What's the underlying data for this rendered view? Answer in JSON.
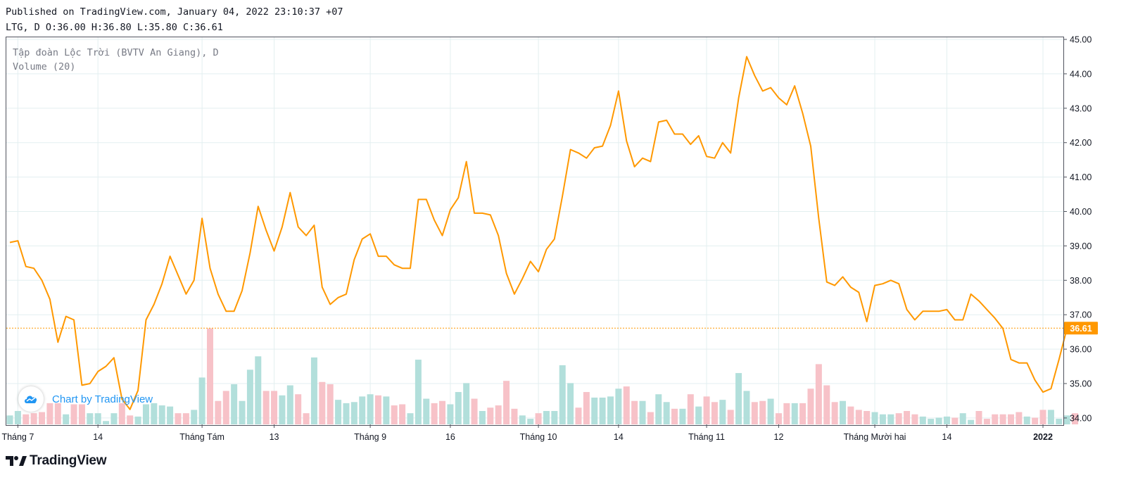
{
  "header": {
    "published": "Published on TradingView.com, January 04, 2022 23:10:37 +07",
    "ohlc": "LTG, D O:36.00 H:36.80 L:35.80 C:36.61"
  },
  "legend": {
    "symbol": "Tập đoàn Lộc Trời (BVTV An Giang), D",
    "volume": "Volume (20)"
  },
  "watermark": {
    "text": "Chart by TradingView"
  },
  "footer": {
    "logo_text": "TradingView"
  },
  "colors": {
    "line": "#ff9800",
    "vol_up": "#b2dfdb",
    "vol_down": "#f7c2c8",
    "grid": "#e3eff0",
    "axis_text": "#131722",
    "last_price_bg": "#ff9800"
  },
  "chart_data": {
    "type": "line",
    "y_axis": {
      "min": 33.7,
      "max": 45.0,
      "ticks": [
        "34.00",
        "35.00",
        "36.00",
        "37.00",
        "38.00",
        "39.00",
        "40.00",
        "41.00",
        "42.00",
        "43.00",
        "44.00",
        "45.00"
      ]
    },
    "x_axis": {
      "labels": [
        "Tháng 7",
        "14",
        "Tháng Tám",
        "13",
        "Tháng 9",
        "16",
        "Tháng 10",
        "14",
        "Tháng 11",
        "12",
        "Tháng Mười hai",
        "14",
        "2022"
      ],
      "label_index": [
        1,
        11,
        24,
        33,
        45,
        55,
        66,
        76,
        87,
        96,
        108,
        117,
        129
      ]
    },
    "last_price": "36.61",
    "series": [
      {
        "values": [
          39.1,
          39.15,
          38.4,
          38.35,
          38.0,
          37.45,
          36.2,
          36.95,
          36.85,
          34.95,
          35.0,
          35.35,
          35.5,
          35.75,
          34.55,
          34.25,
          34.8,
          36.85,
          37.3,
          37.9,
          38.7,
          38.15,
          37.6,
          38.0,
          39.8,
          38.35,
          37.6,
          37.1,
          37.1,
          37.7,
          38.8,
          40.15,
          39.45,
          38.85,
          39.55,
          40.55,
          39.55,
          39.3,
          39.6,
          37.8,
          37.3,
          37.5,
          37.6,
          38.6,
          39.2,
          39.35,
          38.7,
          38.7,
          38.45,
          38.35,
          38.35,
          40.35,
          40.35,
          39.75,
          39.3,
          40.05,
          40.4,
          41.45,
          39.95,
          39.95,
          39.9,
          39.3,
          38.2,
          37.6,
          38.05,
          38.55,
          38.25,
          38.9,
          39.2,
          40.45,
          41.8,
          41.7,
          41.55,
          41.85,
          41.9,
          42.5,
          43.5,
          42.05,
          41.3,
          41.55,
          41.45,
          42.6,
          42.65,
          42.25,
          42.25,
          41.95,
          42.2,
          41.6,
          41.55,
          42.0,
          41.7,
          43.3,
          44.5,
          43.95,
          43.5,
          43.6,
          43.3,
          43.1,
          43.65,
          42.85,
          41.9,
          39.8,
          37.95,
          37.85,
          38.1,
          37.8,
          37.65,
          36.8,
          37.85,
          37.9,
          38.0,
          37.9,
          37.15,
          36.85,
          37.1,
          37.1,
          37.1,
          37.15,
          36.85,
          36.85,
          37.6,
          37.4,
          37.15,
          36.9,
          36.6,
          35.7,
          35.6,
          35.6,
          35.1,
          34.75,
          34.85,
          35.7,
          36.61
        ]
      },
      {
        "name": "Volume",
        "values": [
          0.8,
          1.2,
          0.9,
          1.0,
          1.1,
          1.9,
          1.9,
          0.9,
          1.8,
          1.8,
          1.0,
          1.0,
          0.3,
          1.0,
          1.9,
          0.8,
          0.7,
          1.8,
          1.9,
          1.7,
          1.6,
          1.0,
          1.0,
          1.3,
          4.2,
          8.6,
          2.1,
          3.0,
          3.6,
          2.1,
          4.9,
          6.1,
          3.0,
          3.0,
          2.6,
          3.5,
          2.7,
          1.0,
          6.0,
          3.8,
          3.6,
          2.2,
          1.9,
          2.0,
          2.5,
          2.7,
          2.6,
          2.5,
          1.7,
          1.8,
          1.0,
          5.8,
          2.3,
          1.9,
          2.1,
          1.8,
          2.9,
          3.7,
          2.3,
          1.2,
          1.5,
          1.7,
          3.9,
          1.4,
          0.8,
          0.5,
          1.0,
          1.2,
          1.2,
          5.3,
          3.7,
          1.5,
          2.9,
          2.4,
          2.4,
          2.5,
          3.2,
          3.4,
          2.1,
          2.1,
          1.1,
          2.7,
          2.0,
          1.4,
          1.4,
          2.7,
          1.6,
          2.5,
          2.0,
          2.2,
          1.3,
          4.6,
          3.0,
          2.0,
          2.1,
          2.3,
          1.0,
          1.9,
          1.9,
          1.9,
          3.2,
          5.4,
          3.5,
          2.0,
          2.1,
          1.6,
          1.3,
          1.2,
          1.1,
          0.9,
          0.9,
          1.0,
          1.2,
          0.9,
          0.7,
          0.5,
          0.6,
          0.7,
          0.6,
          1.0,
          0.4,
          1.2,
          0.5,
          0.9,
          0.9,
          0.9,
          1.1,
          0.7,
          0.6,
          1.3,
          1.3,
          0.5,
          0.8,
          1.0
        ]
      }
    ]
  }
}
